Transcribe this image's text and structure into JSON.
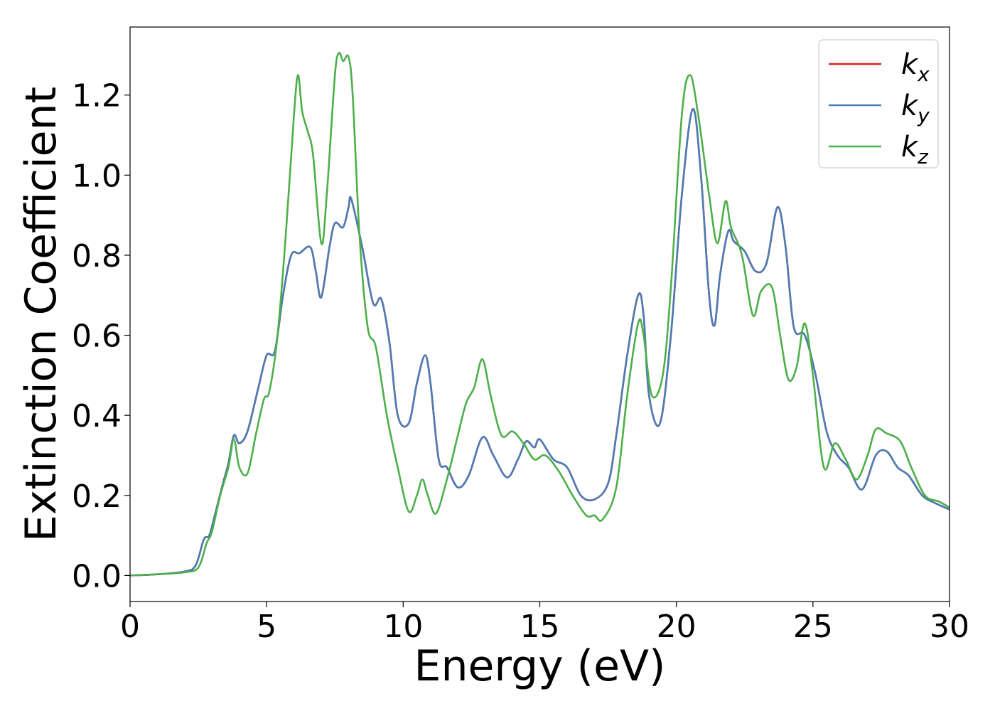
{
  "chart_data": {
    "type": "line",
    "xlabel": "Energy (eV)",
    "ylabel": "Extinction Coefficient",
    "xlim": [
      0,
      30
    ],
    "ylim": [
      -0.065,
      1.37
    ],
    "xticks": [
      0,
      5,
      10,
      15,
      20,
      25,
      30
    ],
    "xtick_labels": [
      "0",
      "5",
      "10",
      "15",
      "20",
      "25",
      "30"
    ],
    "yticks": [
      0.0,
      0.2,
      0.4,
      0.6,
      0.8,
      1.0,
      1.2
    ],
    "ytick_labels": [
      "0.0",
      "0.2",
      "0.4",
      "0.6",
      "0.8",
      "1.0",
      "1.2"
    ],
    "grid": false,
    "legend_position": "top-right",
    "series": [
      {
        "name": "k",
        "subscript": "x",
        "color": "#e41a1c",
        "points": [
          [
            0,
            0.0
          ],
          [
            1,
            0.003
          ],
          [
            2,
            0.01
          ],
          [
            2.4,
            0.025
          ],
          [
            2.7,
            0.09
          ],
          [
            2.9,
            0.1
          ],
          [
            3.1,
            0.15
          ],
          [
            3.4,
            0.23
          ],
          [
            3.6,
            0.28
          ],
          [
            3.8,
            0.35
          ],
          [
            4.0,
            0.33
          ],
          [
            4.3,
            0.36
          ],
          [
            4.7,
            0.47
          ],
          [
            5.0,
            0.55
          ],
          [
            5.3,
            0.56
          ],
          [
            5.6,
            0.7
          ],
          [
            5.9,
            0.8
          ],
          [
            6.2,
            0.805
          ],
          [
            6.6,
            0.82
          ],
          [
            6.8,
            0.76
          ],
          [
            7.0,
            0.695
          ],
          [
            7.3,
            0.82
          ],
          [
            7.5,
            0.88
          ],
          [
            7.8,
            0.87
          ],
          [
            8.0,
            0.92
          ],
          [
            8.1,
            0.94
          ],
          [
            8.5,
            0.82
          ],
          [
            8.9,
            0.68
          ],
          [
            9.2,
            0.69
          ],
          [
            9.5,
            0.58
          ],
          [
            9.8,
            0.4
          ],
          [
            10.2,
            0.38
          ],
          [
            10.5,
            0.48
          ],
          [
            10.8,
            0.55
          ],
          [
            11.0,
            0.48
          ],
          [
            11.3,
            0.29
          ],
          [
            11.6,
            0.27
          ],
          [
            12.0,
            0.22
          ],
          [
            12.4,
            0.25
          ],
          [
            12.9,
            0.345
          ],
          [
            13.3,
            0.3
          ],
          [
            13.8,
            0.245
          ],
          [
            14.2,
            0.29
          ],
          [
            14.5,
            0.335
          ],
          [
            14.8,
            0.32
          ],
          [
            15.0,
            0.34
          ],
          [
            15.5,
            0.29
          ],
          [
            16.0,
            0.27
          ],
          [
            16.5,
            0.2
          ],
          [
            17.0,
            0.19
          ],
          [
            17.5,
            0.23
          ],
          [
            17.8,
            0.35
          ],
          [
            18.2,
            0.55
          ],
          [
            18.6,
            0.7
          ],
          [
            18.8,
            0.65
          ],
          [
            19.0,
            0.45
          ],
          [
            19.4,
            0.38
          ],
          [
            19.8,
            0.6
          ],
          [
            20.2,
            0.95
          ],
          [
            20.6,
            1.165
          ],
          [
            20.9,
            1.0
          ],
          [
            21.2,
            0.7
          ],
          [
            21.4,
            0.625
          ],
          [
            21.6,
            0.75
          ],
          [
            21.9,
            0.86
          ],
          [
            22.1,
            0.835
          ],
          [
            22.5,
            0.81
          ],
          [
            22.9,
            0.76
          ],
          [
            23.3,
            0.78
          ],
          [
            23.7,
            0.92
          ],
          [
            24.0,
            0.82
          ],
          [
            24.3,
            0.62
          ],
          [
            24.7,
            0.6
          ],
          [
            25.1,
            0.5
          ],
          [
            25.5,
            0.36
          ],
          [
            25.9,
            0.3
          ],
          [
            26.3,
            0.27
          ],
          [
            26.8,
            0.215
          ],
          [
            27.3,
            0.3
          ],
          [
            27.7,
            0.31
          ],
          [
            28.1,
            0.27
          ],
          [
            28.5,
            0.25
          ],
          [
            29.0,
            0.2
          ],
          [
            29.5,
            0.18
          ],
          [
            30,
            0.165
          ]
        ]
      },
      {
        "name": "k",
        "subscript": "y",
        "color": "#4a7db5",
        "points": [
          [
            0,
            0.0
          ],
          [
            1,
            0.003
          ],
          [
            2,
            0.01
          ],
          [
            2.4,
            0.025
          ],
          [
            2.7,
            0.09
          ],
          [
            2.9,
            0.1
          ],
          [
            3.1,
            0.15
          ],
          [
            3.4,
            0.23
          ],
          [
            3.6,
            0.28
          ],
          [
            3.8,
            0.35
          ],
          [
            4.0,
            0.33
          ],
          [
            4.3,
            0.36
          ],
          [
            4.7,
            0.47
          ],
          [
            5.0,
            0.55
          ],
          [
            5.3,
            0.56
          ],
          [
            5.6,
            0.7
          ],
          [
            5.9,
            0.8
          ],
          [
            6.2,
            0.805
          ],
          [
            6.6,
            0.82
          ],
          [
            6.8,
            0.76
          ],
          [
            7.0,
            0.695
          ],
          [
            7.3,
            0.82
          ],
          [
            7.5,
            0.88
          ],
          [
            7.8,
            0.87
          ],
          [
            8.0,
            0.92
          ],
          [
            8.1,
            0.94
          ],
          [
            8.5,
            0.82
          ],
          [
            8.9,
            0.68
          ],
          [
            9.2,
            0.69
          ],
          [
            9.5,
            0.58
          ],
          [
            9.8,
            0.4
          ],
          [
            10.2,
            0.38
          ],
          [
            10.5,
            0.48
          ],
          [
            10.8,
            0.55
          ],
          [
            11.0,
            0.48
          ],
          [
            11.3,
            0.29
          ],
          [
            11.6,
            0.27
          ],
          [
            12.0,
            0.22
          ],
          [
            12.4,
            0.25
          ],
          [
            12.9,
            0.345
          ],
          [
            13.3,
            0.3
          ],
          [
            13.8,
            0.245
          ],
          [
            14.2,
            0.29
          ],
          [
            14.5,
            0.335
          ],
          [
            14.8,
            0.32
          ],
          [
            15.0,
            0.34
          ],
          [
            15.5,
            0.29
          ],
          [
            16.0,
            0.27
          ],
          [
            16.5,
            0.2
          ],
          [
            17.0,
            0.19
          ],
          [
            17.5,
            0.23
          ],
          [
            17.8,
            0.35
          ],
          [
            18.2,
            0.55
          ],
          [
            18.6,
            0.7
          ],
          [
            18.8,
            0.65
          ],
          [
            19.0,
            0.45
          ],
          [
            19.4,
            0.38
          ],
          [
            19.8,
            0.6
          ],
          [
            20.2,
            0.95
          ],
          [
            20.6,
            1.165
          ],
          [
            20.9,
            1.0
          ],
          [
            21.2,
            0.7
          ],
          [
            21.4,
            0.625
          ],
          [
            21.6,
            0.75
          ],
          [
            21.9,
            0.86
          ],
          [
            22.1,
            0.835
          ],
          [
            22.5,
            0.81
          ],
          [
            22.9,
            0.76
          ],
          [
            23.3,
            0.78
          ],
          [
            23.7,
            0.92
          ],
          [
            24.0,
            0.82
          ],
          [
            24.3,
            0.62
          ],
          [
            24.7,
            0.6
          ],
          [
            25.1,
            0.5
          ],
          [
            25.5,
            0.36
          ],
          [
            25.9,
            0.3
          ],
          [
            26.3,
            0.27
          ],
          [
            26.8,
            0.215
          ],
          [
            27.3,
            0.3
          ],
          [
            27.7,
            0.31
          ],
          [
            28.1,
            0.27
          ],
          [
            28.5,
            0.25
          ],
          [
            29.0,
            0.2
          ],
          [
            29.5,
            0.18
          ],
          [
            30,
            0.165
          ]
        ]
      },
      {
        "name": "k",
        "subscript": "z",
        "color": "#4daf4a",
        "points": [
          [
            0,
            0.0
          ],
          [
            1,
            0.003
          ],
          [
            2,
            0.008
          ],
          [
            2.5,
            0.02
          ],
          [
            2.8,
            0.08
          ],
          [
            3.0,
            0.11
          ],
          [
            3.3,
            0.2
          ],
          [
            3.6,
            0.27
          ],
          [
            3.8,
            0.34
          ],
          [
            4.0,
            0.27
          ],
          [
            4.3,
            0.255
          ],
          [
            4.6,
            0.35
          ],
          [
            4.9,
            0.44
          ],
          [
            5.1,
            0.46
          ],
          [
            5.4,
            0.6
          ],
          [
            5.7,
            0.85
          ],
          [
            6.0,
            1.15
          ],
          [
            6.15,
            1.25
          ],
          [
            6.3,
            1.16
          ],
          [
            6.5,
            1.11
          ],
          [
            6.7,
            1.05
          ],
          [
            7.0,
            0.83
          ],
          [
            7.2,
            0.95
          ],
          [
            7.5,
            1.25
          ],
          [
            7.65,
            1.305
          ],
          [
            7.8,
            1.285
          ],
          [
            8.0,
            1.295
          ],
          [
            8.15,
            1.2
          ],
          [
            8.4,
            0.85
          ],
          [
            8.7,
            0.62
          ],
          [
            9.0,
            0.57
          ],
          [
            9.4,
            0.4
          ],
          [
            9.8,
            0.27
          ],
          [
            10.2,
            0.16
          ],
          [
            10.5,
            0.2
          ],
          [
            10.7,
            0.24
          ],
          [
            10.9,
            0.2
          ],
          [
            11.2,
            0.155
          ],
          [
            11.6,
            0.24
          ],
          [
            12.0,
            0.35
          ],
          [
            12.3,
            0.43
          ],
          [
            12.6,
            0.47
          ],
          [
            12.9,
            0.54
          ],
          [
            13.2,
            0.45
          ],
          [
            13.6,
            0.35
          ],
          [
            14.0,
            0.36
          ],
          [
            14.4,
            0.33
          ],
          [
            14.8,
            0.29
          ],
          [
            15.2,
            0.3
          ],
          [
            15.7,
            0.26
          ],
          [
            16.2,
            0.2
          ],
          [
            16.7,
            0.15
          ],
          [
            17.0,
            0.15
          ],
          [
            17.3,
            0.14
          ],
          [
            17.8,
            0.22
          ],
          [
            18.2,
            0.45
          ],
          [
            18.6,
            0.63
          ],
          [
            18.8,
            0.6
          ],
          [
            19.1,
            0.45
          ],
          [
            19.5,
            0.5
          ],
          [
            19.8,
            0.72
          ],
          [
            20.2,
            1.15
          ],
          [
            20.5,
            1.25
          ],
          [
            20.8,
            1.15
          ],
          [
            21.2,
            0.95
          ],
          [
            21.5,
            0.83
          ],
          [
            21.8,
            0.935
          ],
          [
            22.0,
            0.87
          ],
          [
            22.4,
            0.8
          ],
          [
            22.8,
            0.65
          ],
          [
            23.1,
            0.71
          ],
          [
            23.5,
            0.72
          ],
          [
            23.8,
            0.6
          ],
          [
            24.1,
            0.49
          ],
          [
            24.4,
            0.52
          ],
          [
            24.7,
            0.63
          ],
          [
            25.0,
            0.5
          ],
          [
            25.4,
            0.27
          ],
          [
            25.8,
            0.33
          ],
          [
            26.2,
            0.29
          ],
          [
            26.6,
            0.24
          ],
          [
            27.0,
            0.3
          ],
          [
            27.3,
            0.365
          ],
          [
            27.7,
            0.355
          ],
          [
            28.2,
            0.335
          ],
          [
            28.6,
            0.27
          ],
          [
            29.1,
            0.2
          ],
          [
            29.6,
            0.185
          ],
          [
            30,
            0.17
          ]
        ]
      }
    ]
  }
}
